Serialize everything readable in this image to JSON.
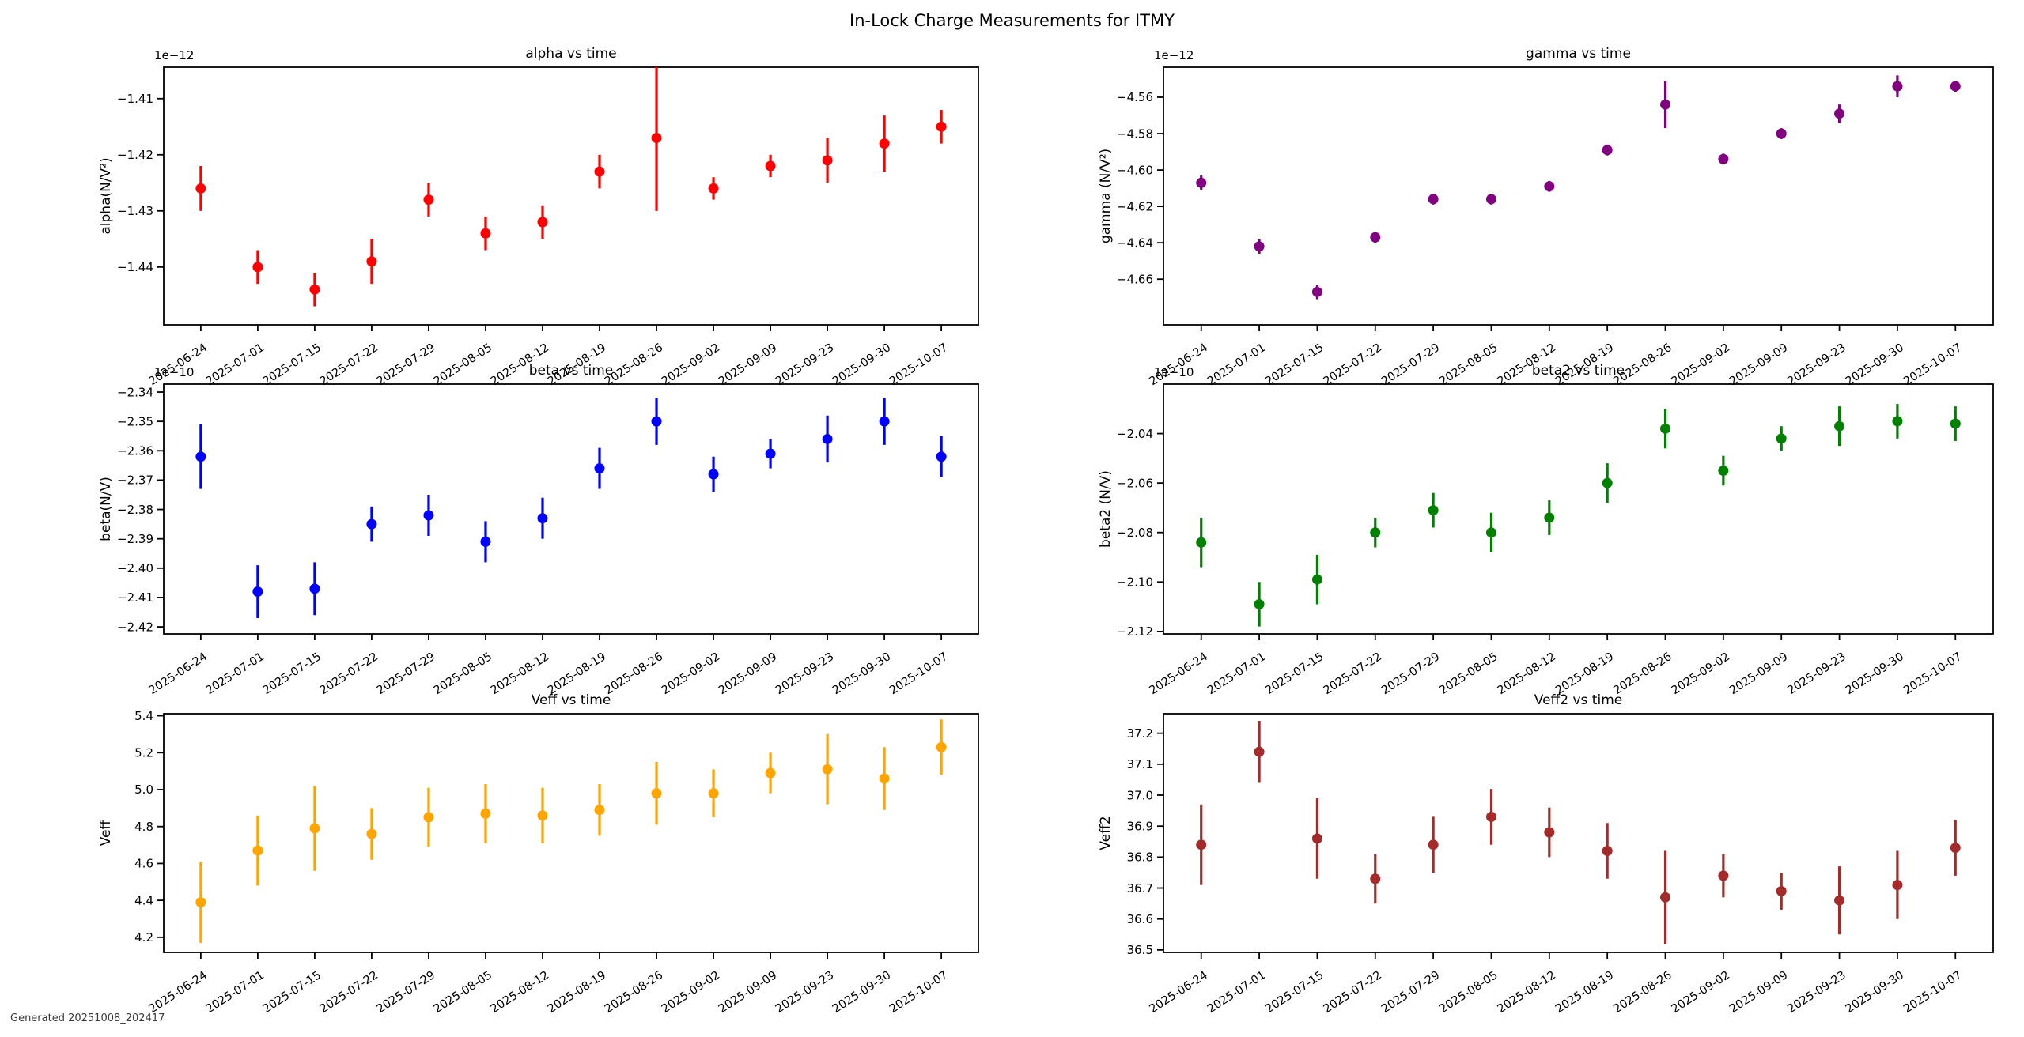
{
  "figure": {
    "title": "In-Lock Charge Measurements for ITMY",
    "footer": "Generated 20251008_202417",
    "background_color": "#ffffff",
    "text_color": "#000000"
  },
  "chart_data": {
    "type": "scatter",
    "subtype": "errorbar",
    "grid": false,
    "legend": "none",
    "layout_hint": "3 rows x 2 columns of subplots, shared date categories, rotated x tick labels",
    "categories": [
      "2025-06-24",
      "2025-07-01",
      "2025-07-15",
      "2025-07-22",
      "2025-07-29",
      "2025-08-05",
      "2025-08-12",
      "2025-08-19",
      "2025-08-26",
      "2025-09-02",
      "2025-09-09",
      "2025-09-23",
      "2025-09-30",
      "2025-10-07"
    ],
    "charts": [
      {
        "key": "alpha",
        "title": "alpha vs time",
        "ylabel": "alpha(N/V²)",
        "xlabel": "",
        "offset_label": "1e−12",
        "unit_scale": "1e-12",
        "color": "#ff0000",
        "ylim": [
          -1.4503,
          -1.4044
        ],
        "yticks": [
          -1.41,
          -1.42,
          -1.43,
          -1.44
        ],
        "ytick_labels": [
          "−1.41",
          "−1.42",
          "−1.43",
          "−1.44"
        ],
        "values": [
          -1.426,
          -1.44,
          -1.444,
          -1.439,
          -1.428,
          -1.434,
          -1.432,
          -1.423,
          -1.417,
          -1.426,
          -1.422,
          -1.421,
          -1.418,
          -1.415
        ],
        "errors": [
          0.004,
          0.003,
          0.003,
          0.004,
          0.003,
          0.003,
          0.003,
          0.003,
          0.013,
          0.002,
          0.002,
          0.004,
          0.005,
          0.003
        ]
      },
      {
        "key": "gamma",
        "title": "gamma vs time",
        "ylabel": "gamma (N/V²)",
        "xlabel": "",
        "offset_label": "1e−12",
        "unit_scale": "1e-12",
        "color": "#800080",
        "ylim": [
          -4.6851,
          -4.5435
        ],
        "yticks": [
          -4.56,
          -4.58,
          -4.6,
          -4.62,
          -4.64,
          -4.66
        ],
        "ytick_labels": [
          "−4.56",
          "−4.58",
          "−4.60",
          "−4.62",
          "−4.64",
          "−4.66"
        ],
        "values": [
          -4.607,
          -4.642,
          -4.667,
          -4.637,
          -4.616,
          -4.616,
          -4.609,
          -4.589,
          -4.564,
          -4.594,
          -4.58,
          -4.569,
          -4.554,
          -4.554
        ],
        "errors": [
          0.004,
          0.004,
          0.004,
          0.003,
          0.003,
          0.003,
          0.003,
          0.003,
          0.013,
          0.003,
          0.003,
          0.005,
          0.006,
          0.003
        ]
      },
      {
        "key": "beta",
        "title": "beta vs time",
        "ylabel": "beta(N/V)",
        "xlabel": "",
        "offset_label": "1e−10",
        "unit_scale": "1e-10",
        "color": "#0000ff",
        "ylim": [
          -2.4224,
          -2.3373
        ],
        "yticks": [
          -2.34,
          -2.35,
          -2.36,
          -2.37,
          -2.38,
          -2.39,
          -2.4,
          -2.41,
          -2.42
        ],
        "ytick_labels": [
          "−2.34",
          "−2.35",
          "−2.36",
          "−2.37",
          "−2.38",
          "−2.39",
          "−2.40",
          "−2.41",
          "−2.42"
        ],
        "values": [
          -2.362,
          -2.408,
          -2.407,
          -2.385,
          -2.382,
          -2.391,
          -2.383,
          -2.366,
          -2.35,
          -2.368,
          -2.361,
          -2.356,
          -2.35,
          -2.362
        ],
        "errors": [
          0.011,
          0.009,
          0.009,
          0.006,
          0.007,
          0.007,
          0.007,
          0.007,
          0.008,
          0.006,
          0.005,
          0.008,
          0.008,
          0.007
        ]
      },
      {
        "key": "beta2",
        "title": "beta2 vs time",
        "ylabel": "beta2 (N/V)",
        "xlabel": "",
        "offset_label": "1e−10",
        "unit_scale": "1e-10",
        "color": "#008000",
        "ylim": [
          -2.121,
          -2.02
        ],
        "yticks": [
          -2.04,
          -2.06,
          -2.08,
          -2.1,
          -2.12
        ],
        "ytick_labels": [
          "−2.04",
          "−2.06",
          "−2.08",
          "−2.10",
          "−2.12"
        ],
        "values": [
          -2.084,
          -2.109,
          -2.099,
          -2.08,
          -2.071,
          -2.08,
          -2.074,
          -2.06,
          -2.038,
          -2.055,
          -2.042,
          -2.037,
          -2.035,
          -2.036
        ],
        "errors": [
          0.01,
          0.009,
          0.01,
          0.006,
          0.007,
          0.008,
          0.007,
          0.008,
          0.008,
          0.006,
          0.005,
          0.008,
          0.007,
          0.007
        ]
      },
      {
        "key": "Veff",
        "title": "Veff vs time",
        "ylabel": "Veff",
        "xlabel": "",
        "offset_label": null,
        "unit_scale": "1",
        "color": "#ffa500",
        "ylim": [
          4.118,
          5.411
        ],
        "yticks": [
          4.2,
          4.4,
          4.6,
          4.8,
          5.0,
          5.2,
          5.4
        ],
        "ytick_labels": [
          "4.2",
          "4.4",
          "4.6",
          "4.8",
          "5.0",
          "5.2",
          "5.4"
        ],
        "values": [
          4.39,
          4.67,
          4.79,
          4.76,
          4.85,
          4.87,
          4.86,
          4.89,
          4.98,
          4.98,
          5.09,
          5.11,
          5.06,
          5.23
        ],
        "errors": [
          0.22,
          0.19,
          0.23,
          0.14,
          0.16,
          0.16,
          0.15,
          0.14,
          0.17,
          0.13,
          0.11,
          0.19,
          0.17,
          0.15
        ]
      },
      {
        "key": "Veff2",
        "title": "Veff2 vs time",
        "ylabel": "Veff2",
        "xlabel": "",
        "offset_label": null,
        "unit_scale": "1",
        "color": "#a52a2a",
        "ylim": [
          36.492,
          37.263
        ],
        "yticks": [
          36.5,
          36.6,
          36.7,
          36.8,
          36.9,
          37.0,
          37.1,
          37.2
        ],
        "ytick_labels": [
          "36.5",
          "36.6",
          "36.7",
          "36.8",
          "36.9",
          "37.0",
          "37.1",
          "37.2"
        ],
        "values": [
          36.84,
          37.14,
          36.86,
          36.73,
          36.84,
          36.93,
          36.88,
          36.82,
          36.67,
          36.74,
          36.69,
          36.66,
          36.71,
          36.83
        ],
        "errors": [
          0.13,
          0.1,
          0.13,
          0.08,
          0.09,
          0.09,
          0.08,
          0.09,
          0.15,
          0.07,
          0.06,
          0.11,
          0.11,
          0.09
        ]
      }
    ]
  }
}
